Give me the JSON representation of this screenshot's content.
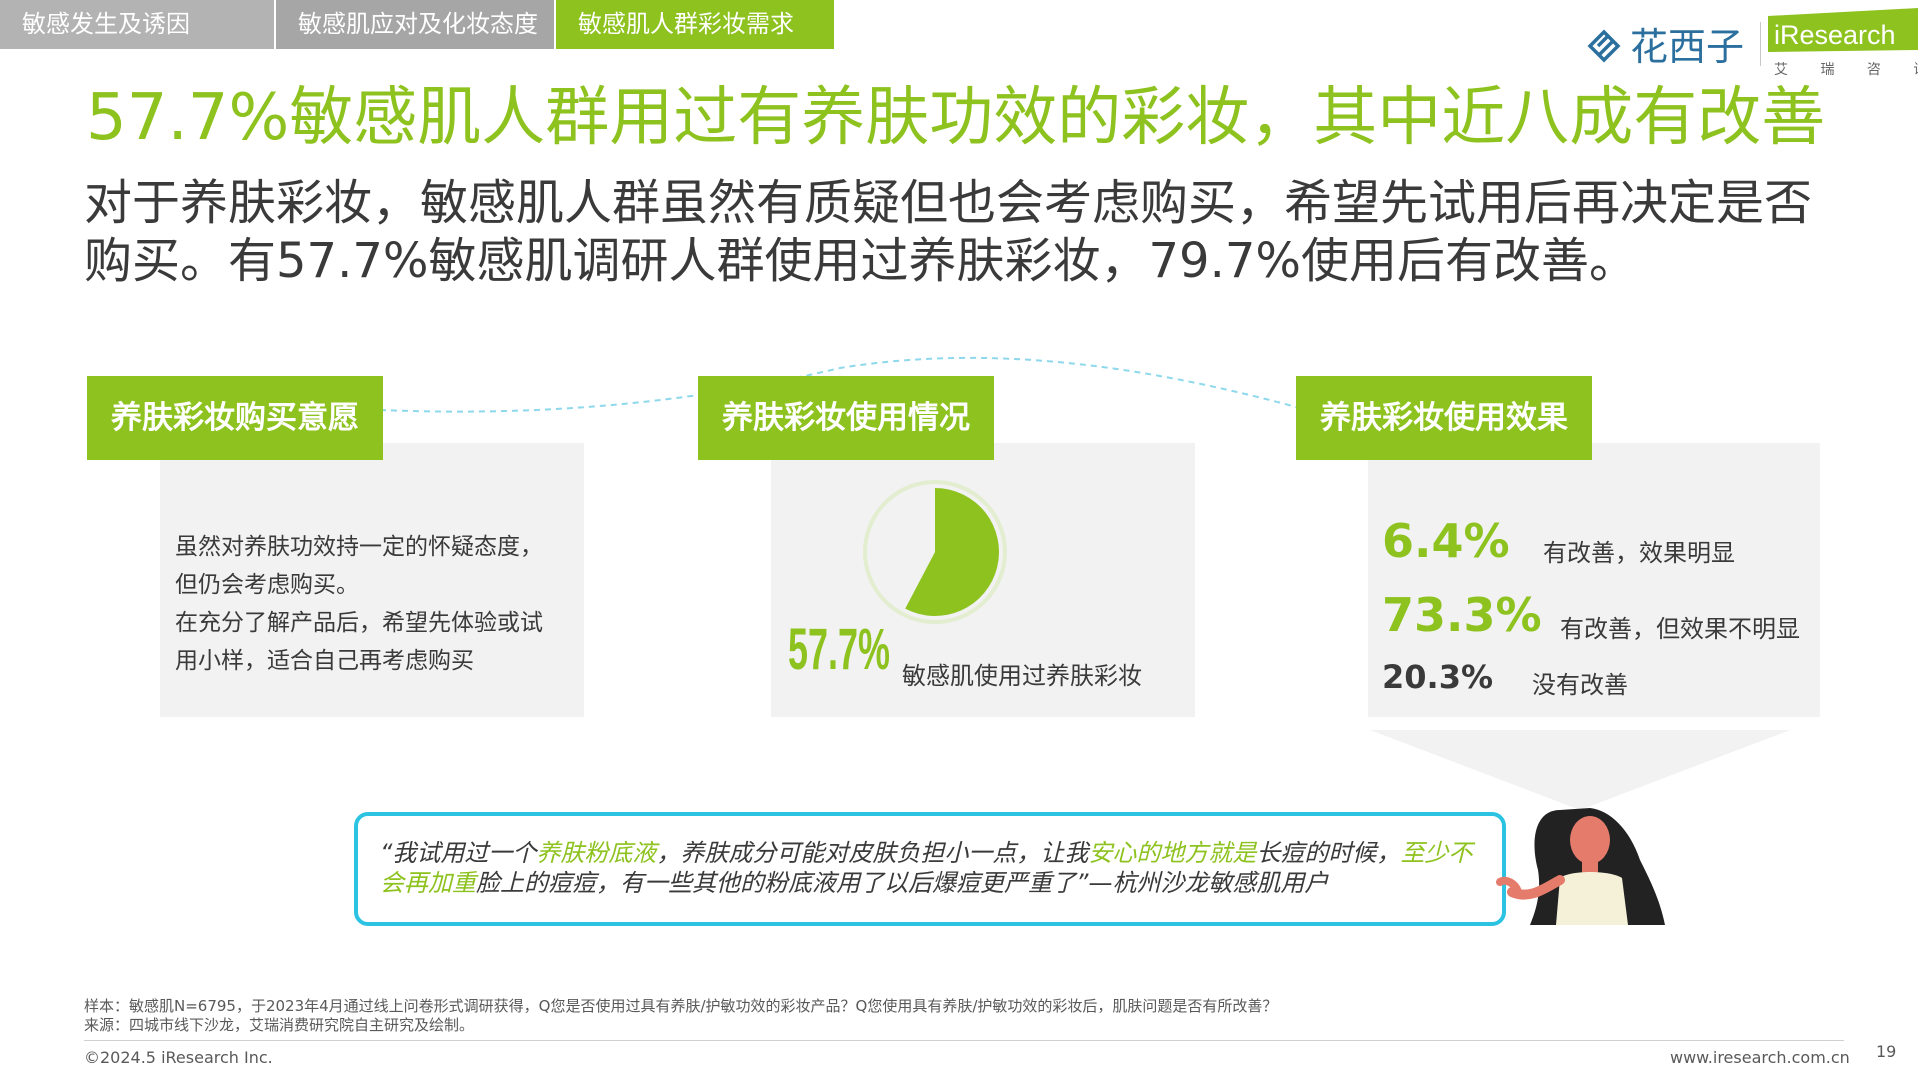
{
  "tabs": [
    {
      "label": "敏感发生及诱因"
    },
    {
      "label": "敏感肌应对及化妆态度"
    },
    {
      "label": "敏感肌人群彩妆需求"
    }
  ],
  "logos": {
    "partner": "花西子",
    "iresearch": "iResearch",
    "iresearch_cn": "艾 瑞 咨 询"
  },
  "title": "57.7%敏感肌人群用过有养肤功效的彩妆，其中近八成有改善",
  "subtitle": "对于养肤彩妆，敏感肌人群虽然有质疑但也会考虑购买，希望先试用后再决定是否购买。有57.7%敏感肌调研人群使用过养肤彩妆，79.7%使用后有改善。",
  "sections": {
    "purchase": {
      "header": "养肤彩妆购买意愿",
      "lines": [
        "虽然对养肤功效持一定的怀疑态度，",
        "但仍会考虑购买。",
        "在充分了解产品后，希望先体验或试",
        "用小样，适合自己再考虑购买"
      ]
    },
    "usage": {
      "header": "养肤彩妆使用情况",
      "value": 57.7,
      "value_label": "57.7%",
      "caption": "敏感肌使用过养肤彩妆"
    },
    "effect": {
      "header": "养肤彩妆使用效果",
      "items": [
        {
          "pct": "6.4%",
          "label": "有改善，效果明显"
        },
        {
          "pct": "73.3%",
          "label": "有改善，但效果不明显"
        },
        {
          "pct": "20.3%",
          "label": "没有改善"
        }
      ]
    }
  },
  "quote": {
    "p1": "“我试用过一个",
    "h1": "养肤粉底液",
    "p2": "，养肤成分可能对皮肤负担小一点，让我",
    "h2": "安心的地方就是",
    "p3": "长痘的时候，",
    "h3": "至少不会再加重",
    "p4": "脸上的痘痘，有一些其他的粉底液用了以后爆痘更严重了”",
    "p5": "—杭州沙龙敏感肌用户"
  },
  "footer": {
    "sample": "样本：敏感肌N=6795，于2023年4月通过线上问卷形式调研获得，Q您是否使用过具有养肤/护敏功效的彩妆产品？Q您使用具有养肤/护敏功效的彩妆后，肌肤问题是否有所改善？",
    "source": "来源：四城市线下沙龙，艾瑞消费研究院自主研究及绘制。",
    "copyright": "©2024.5 iResearch Inc.",
    "website": "www.iresearch.com.cn",
    "page": "19"
  },
  "colors": {
    "accent": "#8dc21f",
    "quote_border": "#2cc3e2",
    "panel": "#f2f2f2"
  }
}
